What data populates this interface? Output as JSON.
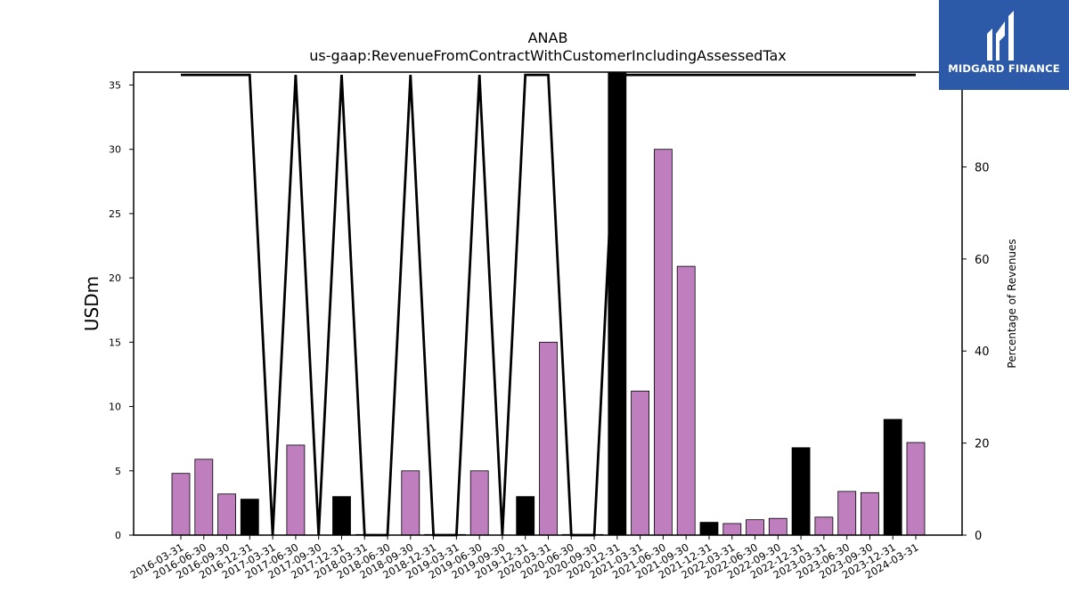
{
  "chart_data": {
    "type": "bar",
    "title": "ANAB",
    "subtitle": "us-gaap:RevenueFromContractWithCustomerIncludingAssessedTax",
    "ylabel": "USDm",
    "y2label": "Percentage of Revenues",
    "ylim": [
      0,
      36
    ],
    "y2lim": [
      0,
      100.6
    ],
    "yticks": [
      0,
      5,
      10,
      15,
      20,
      25,
      30,
      35
    ],
    "y2ticks": [
      0,
      20,
      40,
      60,
      80,
      100
    ],
    "grid": false,
    "categories": [
      "2016-03-31",
      "2016-06-30",
      "2016-09-30",
      "2016-12-31",
      "2017-03-31",
      "2017-06-30",
      "2017-09-30",
      "2017-12-31",
      "2018-03-31",
      "2018-06-30",
      "2018-09-30",
      "2018-12-31",
      "2019-03-31",
      "2019-06-30",
      "2019-09-30",
      "2019-12-31",
      "2020-03-31",
      "2020-06-30",
      "2020-09-30",
      "2020-12-31",
      "2021-03-31",
      "2021-06-30",
      "2021-09-30",
      "2021-12-31",
      "2022-03-31",
      "2022-06-30",
      "2022-09-30",
      "2022-12-31",
      "2023-03-31",
      "2023-06-30",
      "2023-09-30",
      "2023-12-31",
      "2024-03-31"
    ],
    "series": [
      {
        "values": [
          4.8,
          5.9,
          3.2,
          2.8,
          0,
          7.0,
          0,
          3.0,
          0.05,
          0,
          5.0,
          0.05,
          0.05,
          5.0,
          0,
          3.0,
          15.0,
          0.05,
          0.05,
          36.0,
          11.2,
          30.0,
          20.9,
          1.0,
          0.9,
          1.2,
          1.3,
          6.8,
          1.4,
          3.4,
          3.3,
          9.0,
          7.2
        ],
        "bar_colors": [
          "#bf7fbf",
          "#bf7fbf",
          "#bf7fbf",
          "#000000",
          "#bf7fbf",
          "#bf7fbf",
          "#bf7fbf",
          "#000000",
          "#bf7fbf",
          "#bf7fbf",
          "#bf7fbf",
          "#bf7fbf",
          "#bf7fbf",
          "#bf7fbf",
          "#bf7fbf",
          "#000000",
          "#bf7fbf",
          "#bf7fbf",
          "#bf7fbf",
          "#000000",
          "#bf7fbf",
          "#bf7fbf",
          "#bf7fbf",
          "#000000",
          "#bf7fbf",
          "#bf7fbf",
          "#bf7fbf",
          "#000000",
          "#bf7fbf",
          "#bf7fbf",
          "#bf7fbf",
          "#000000",
          "#bf7fbf"
        ]
      },
      {
        "type": "line",
        "axis": "right",
        "color": "#000000",
        "values": [
          100,
          100,
          100,
          100,
          0,
          100,
          0,
          100,
          0,
          0,
          100,
          0,
          0,
          100,
          0,
          100,
          100,
          0,
          0,
          100,
          100,
          100,
          100,
          100,
          100,
          100,
          100,
          100,
          100,
          100,
          100,
          100,
          100
        ]
      }
    ]
  },
  "logo": {
    "text": "MIDGARD FINANCE"
  }
}
